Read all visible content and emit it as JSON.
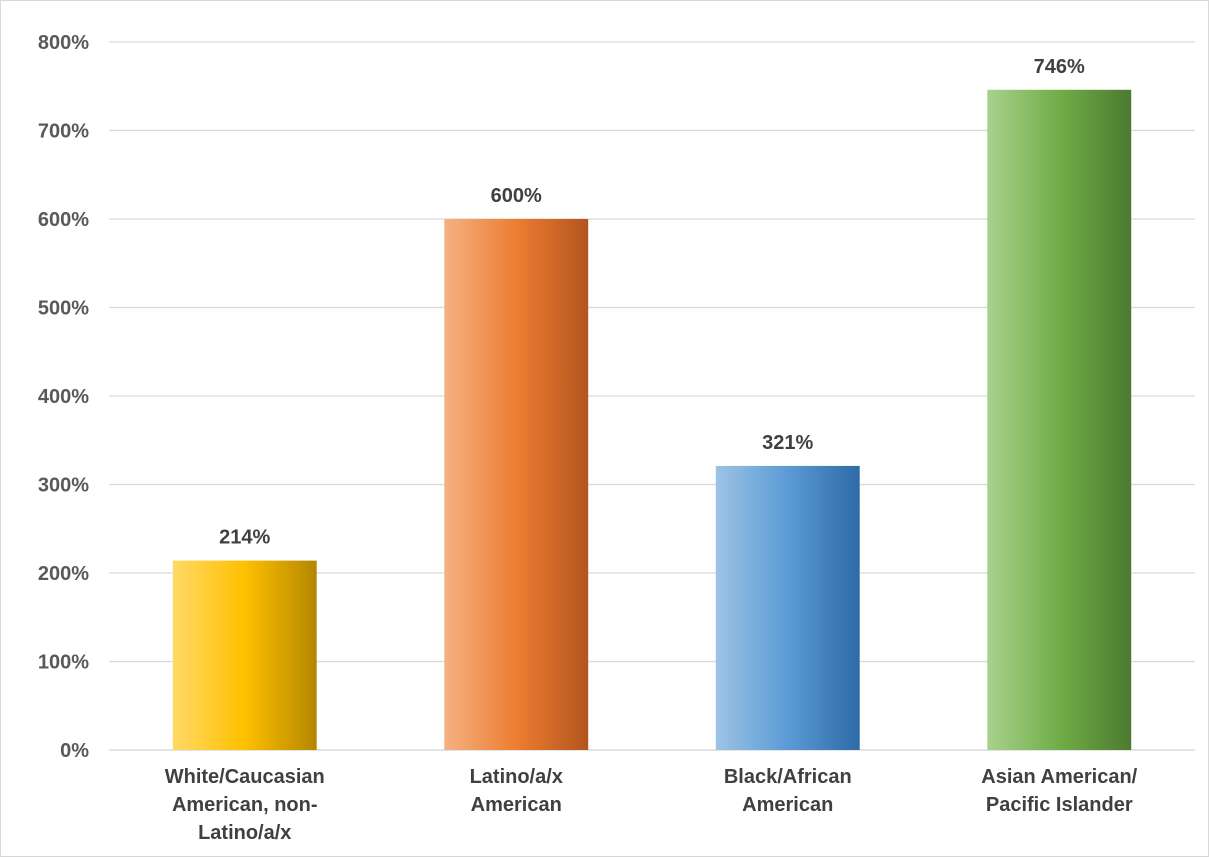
{
  "chart_data": {
    "type": "bar",
    "title": "",
    "xlabel": "",
    "ylabel": "",
    "categories": [
      [
        "White/Caucasian",
        "American, non-",
        "Latino/a/x"
      ],
      [
        "Latino/a/x",
        "American"
      ],
      [
        "Black/African",
        "American"
      ],
      [
        "Asian American/",
        "Pacific Islander"
      ]
    ],
    "values": [
      214,
      600,
      321,
      746
    ],
    "value_labels": [
      "214%",
      "600%",
      "321%",
      "746%"
    ],
    "ylim": [
      0,
      800
    ],
    "y_ticks": [
      "0%",
      "100%",
      "200%",
      "300%",
      "400%",
      "500%",
      "600%",
      "700%",
      "800%"
    ],
    "grid": true,
    "legend": "none",
    "bar_colors": [
      [
        "#ffd966",
        "#ffc000",
        "#b38600"
      ],
      [
        "#f4b183",
        "#ed7d31",
        "#b3541e"
      ],
      [
        "#9dc3e6",
        "#5b9bd5",
        "#2e6aa6"
      ],
      [
        "#a9d18e",
        "#70ad47",
        "#4c7a30"
      ]
    ]
  }
}
